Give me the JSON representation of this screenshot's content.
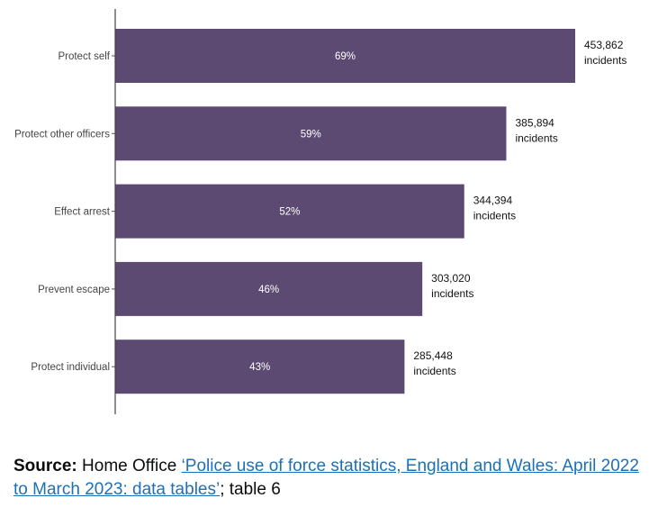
{
  "chart_data": {
    "type": "bar",
    "orientation": "horizontal",
    "categories": [
      "Protect self",
      "Protect other officers",
      "Effect arrest",
      "Prevent escape",
      "Protect individual"
    ],
    "values": [
      453862,
      385894,
      344394,
      303020,
      285448
    ],
    "value_labels": [
      "453,862",
      "385,894",
      "344,394",
      "303,020",
      "285,448"
    ],
    "value_unit": "incidents",
    "percent_labels": [
      "69%",
      "59%",
      "52%",
      "46%",
      "43%"
    ],
    "bar_color": "#5c4a72",
    "xlim": [
      0,
      453862
    ],
    "grid": false
  },
  "source": {
    "label": "Source:",
    "publisher": "Home Office",
    "link_text": "‘Police use of force statistics, England and Wales: April 2022 to March 2023: data tables’",
    "suffix": "; table 6",
    "link_color": "#1d70b8"
  }
}
